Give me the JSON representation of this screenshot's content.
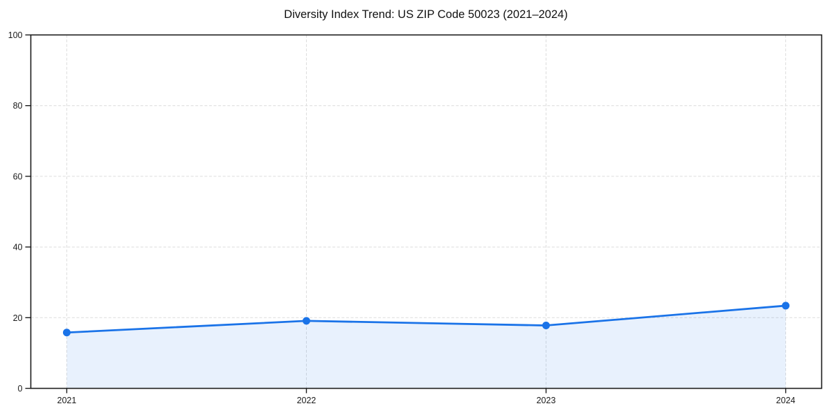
{
  "chart_data": {
    "type": "line",
    "title": "Diversity Index Trend: US ZIP Code 50023 (2021–2024)",
    "x": [
      2021,
      2022,
      2023,
      2024
    ],
    "xtick_labels": [
      "2021",
      "2022",
      "2023",
      "2024"
    ],
    "values": [
      15.8,
      19.1,
      17.8,
      23.4
    ],
    "xlabel": "",
    "ylabel": "",
    "ylim": [
      0,
      100
    ],
    "yticks": [
      0,
      20,
      40,
      60,
      80,
      100
    ],
    "grid": true,
    "grid_style": "dashed",
    "legend_position": "none",
    "marker": "circle",
    "area_fill": true,
    "colors": {
      "line": "#1a73e8",
      "marker": "#1a73e8",
      "area_fill": "rgba(26, 115, 232, 0.10)",
      "grid": "#dcdcdc",
      "axis": "#1a1a1a",
      "tick_text": "#1a1a1a",
      "title_text": "#111111",
      "background": "#ffffff"
    }
  }
}
